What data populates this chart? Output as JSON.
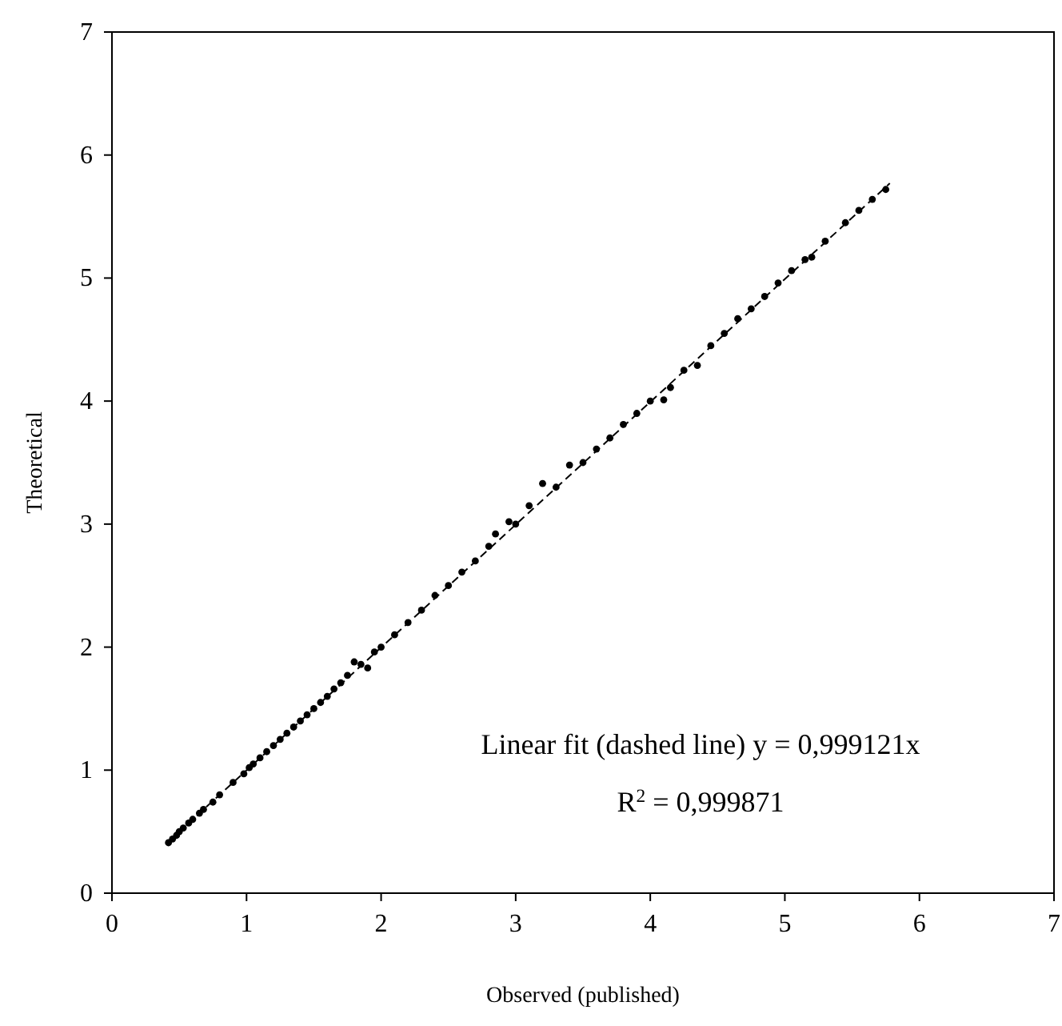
{
  "chart_data": {
    "type": "scatter",
    "xlabel": "Observed (published)",
    "ylabel": "Theoretical",
    "xlim": [
      0,
      7
    ],
    "ylim": [
      0,
      7
    ],
    "xticks": [
      0,
      1,
      2,
      3,
      4,
      5,
      6,
      7
    ],
    "yticks": [
      0,
      1,
      2,
      3,
      4,
      5,
      6,
      7
    ],
    "grid": false,
    "marker": "circle",
    "series": [
      {
        "color": "#000000",
        "x": [
          0.42,
          0.45,
          0.48,
          0.5,
          0.53,
          0.57,
          0.6,
          0.65,
          0.68,
          0.75,
          0.8,
          0.9,
          0.98,
          1.02,
          1.05,
          1.1,
          1.15,
          1.2,
          1.25,
          1.3,
          1.35,
          1.4,
          1.45,
          1.5,
          1.55,
          1.6,
          1.65,
          1.7,
          1.75,
          1.8,
          1.85,
          1.9,
          1.95,
          2.0,
          2.1,
          2.2,
          2.3,
          2.4,
          2.5,
          2.6,
          2.7,
          2.8,
          2.85,
          2.95,
          3.0,
          3.1,
          3.2,
          3.3,
          3.4,
          3.5,
          3.6,
          3.7,
          3.8,
          3.9,
          4.0,
          4.1,
          4.15,
          4.25,
          4.35,
          4.45,
          4.55,
          4.65,
          4.75,
          4.85,
          4.95,
          5.05,
          5.15,
          5.2,
          5.3,
          5.45,
          5.55,
          5.65,
          5.75
        ],
        "values": [
          0.41,
          0.44,
          0.47,
          0.5,
          0.53,
          0.57,
          0.6,
          0.65,
          0.68,
          0.74,
          0.8,
          0.9,
          0.97,
          1.02,
          1.05,
          1.1,
          1.15,
          1.2,
          1.25,
          1.3,
          1.35,
          1.4,
          1.45,
          1.5,
          1.55,
          1.6,
          1.66,
          1.71,
          1.77,
          1.88,
          1.86,
          1.83,
          1.96,
          2.0,
          2.1,
          2.2,
          2.3,
          2.42,
          2.5,
          2.61,
          2.7,
          2.82,
          2.92,
          3.02,
          3.0,
          3.15,
          3.33,
          3.3,
          3.48,
          3.5,
          3.61,
          3.7,
          3.81,
          3.9,
          4.0,
          4.01,
          4.11,
          4.25,
          4.29,
          4.45,
          4.55,
          4.67,
          4.75,
          4.85,
          4.96,
          5.06,
          5.15,
          5.17,
          5.3,
          5.45,
          5.55,
          5.64,
          5.72
        ]
      },
      {
        "type": "line",
        "line_style": "dashed",
        "marker": "none",
        "color": "#000000",
        "x": [
          0.42,
          5.78
        ],
        "values": [
          0.42,
          5.77
        ]
      }
    ],
    "annotations": [
      "Linear fit (dashed line) y = 0,999121x",
      "R$^{2}$ = 0,999871"
    ]
  }
}
